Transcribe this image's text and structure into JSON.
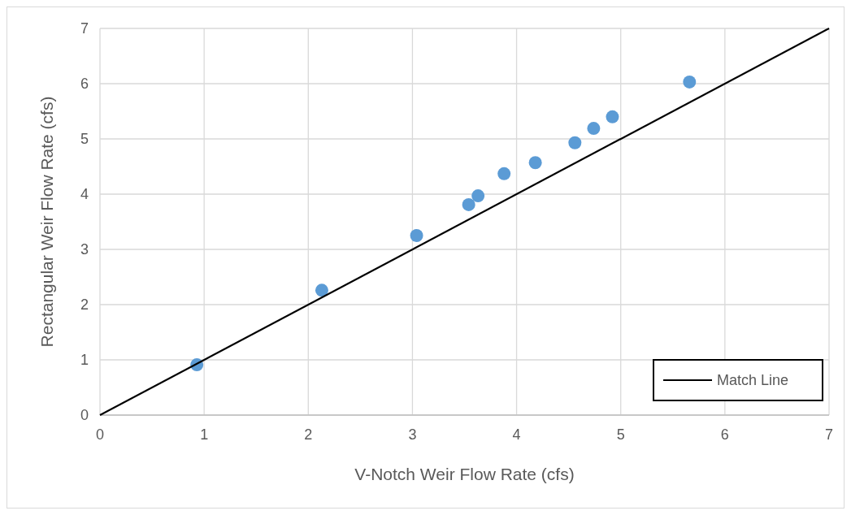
{
  "chart_data": {
    "type": "scatter",
    "xlabel": "V-Notch Weir Flow Rate (cfs)",
    "ylabel": "Rectangular Weir Flow Rate (cfs)",
    "xlim": [
      0,
      7
    ],
    "ylim": [
      0,
      7
    ],
    "xticks": [
      0,
      1,
      2,
      3,
      4,
      5,
      6,
      7
    ],
    "yticks": [
      0,
      1,
      2,
      3,
      4,
      5,
      6,
      7
    ],
    "grid": true,
    "legend": "bottom right",
    "marker": "circle",
    "series": [
      {
        "color": "#5b9bd5",
        "x": [
          0.93,
          2.13,
          3.04,
          3.54,
          3.63,
          3.88,
          4.18,
          4.56,
          4.74,
          4.92,
          5.66
        ],
        "values": [
          0.91,
          2.26,
          3.25,
          3.81,
          3.97,
          4.37,
          4.57,
          4.93,
          5.19,
          5.4,
          6.03
        ]
      },
      {
        "type": "line",
        "name": "Match Line",
        "color": "#000000",
        "marker": "none",
        "line_style": "solid",
        "x": [
          0,
          7
        ],
        "values": [
          0,
          7
        ]
      }
    ]
  }
}
